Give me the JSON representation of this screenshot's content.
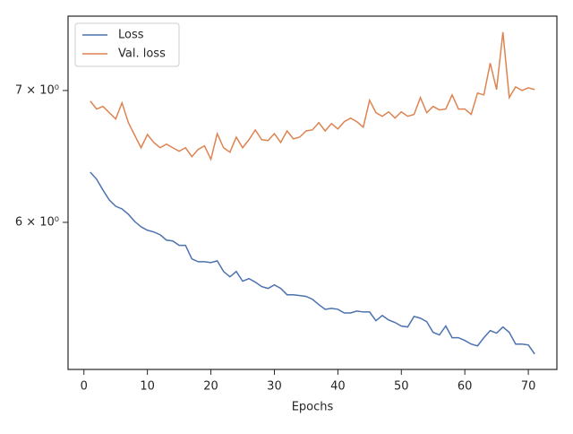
{
  "chart_data": {
    "type": "line",
    "xlabel": "Epochs",
    "x": [
      1,
      2,
      3,
      4,
      5,
      6,
      7,
      8,
      9,
      10,
      11,
      12,
      13,
      14,
      15,
      16,
      17,
      18,
      19,
      20,
      21,
      22,
      23,
      24,
      25,
      26,
      27,
      28,
      29,
      30,
      31,
      32,
      33,
      34,
      35,
      36,
      37,
      38,
      39,
      40,
      41,
      42,
      43,
      44,
      45,
      46,
      47,
      48,
      49,
      50,
      51,
      52,
      53,
      54,
      55,
      56,
      57,
      58,
      59,
      60,
      61,
      62,
      63,
      64,
      65,
      66,
      67,
      68,
      69,
      70,
      71
    ],
    "series": [
      {
        "name": "Loss",
        "color": "#4c72b0",
        "values": [
          6.363,
          6.31,
          6.231,
          6.159,
          6.114,
          6.095,
          6.057,
          6.006,
          5.969,
          5.945,
          5.933,
          5.914,
          5.877,
          5.871,
          5.841,
          5.841,
          5.749,
          5.73,
          5.73,
          5.724,
          5.736,
          5.665,
          5.63,
          5.665,
          5.601,
          5.618,
          5.595,
          5.566,
          5.554,
          5.577,
          5.554,
          5.513,
          5.513,
          5.508,
          5.502,
          5.484,
          5.45,
          5.42,
          5.426,
          5.42,
          5.397,
          5.397,
          5.409,
          5.403,
          5.403,
          5.348,
          5.381,
          5.353,
          5.337,
          5.315,
          5.309,
          5.375,
          5.364,
          5.342,
          5.276,
          5.26,
          5.315,
          5.243,
          5.243,
          5.226,
          5.204,
          5.193,
          5.243,
          5.287,
          5.271,
          5.309,
          5.276,
          5.204,
          5.204,
          5.199,
          5.144
        ]
      },
      {
        "name": "Val. loss",
        "color": "#dd8452",
        "values": [
          6.914,
          6.85,
          6.871,
          6.821,
          6.771,
          6.9,
          6.742,
          6.643,
          6.547,
          6.649,
          6.588,
          6.547,
          6.575,
          6.547,
          6.52,
          6.547,
          6.479,
          6.534,
          6.561,
          6.459,
          6.656,
          6.547,
          6.513,
          6.629,
          6.547,
          6.609,
          6.685,
          6.609,
          6.602,
          6.656,
          6.588,
          6.677,
          6.615,
          6.629,
          6.677,
          6.685,
          6.742,
          6.677,
          6.735,
          6.692,
          6.749,
          6.778,
          6.749,
          6.706,
          6.921,
          6.821,
          6.792,
          6.828,
          6.778,
          6.828,
          6.792,
          6.807,
          6.943,
          6.821,
          6.871,
          6.843,
          6.85,
          6.964,
          6.85,
          6.85,
          6.807,
          6.979,
          6.964,
          7.228,
          7.008,
          7.495,
          6.943,
          7.03,
          7.0,
          7.022,
          7.008
        ]
      }
    ],
    "xlim": [
      -2.5,
      74.5
    ],
    "xticks": [
      0,
      10,
      20,
      30,
      40,
      50,
      60,
      70
    ],
    "ylim": [
      5.052,
      7.636
    ],
    "yticks": [
      {
        "value": 6,
        "label": "6 × 10⁰"
      },
      {
        "value": 7,
        "label": "7 × 10⁰"
      }
    ],
    "log_y": true,
    "grid": false,
    "legend": "upper-left"
  }
}
